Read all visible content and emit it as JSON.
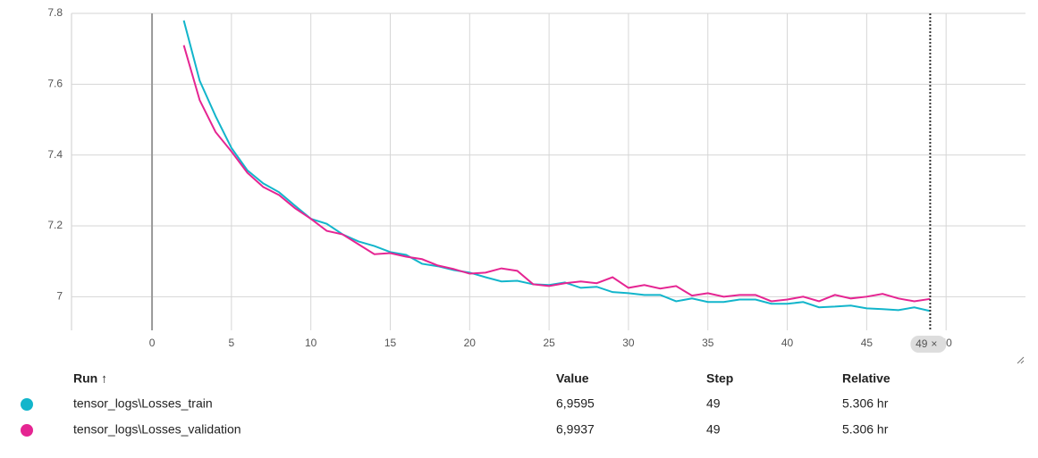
{
  "chart_data": {
    "type": "line",
    "x": [
      2,
      3,
      4,
      5,
      6,
      7,
      8,
      9,
      10,
      11,
      12,
      13,
      14,
      15,
      16,
      17,
      18,
      19,
      20,
      21,
      22,
      23,
      24,
      25,
      26,
      27,
      28,
      29,
      30,
      31,
      32,
      33,
      34,
      35,
      36,
      37,
      38,
      39,
      40,
      41,
      42,
      43,
      44,
      45,
      46,
      47,
      48,
      49
    ],
    "series": [
      {
        "name": "tensor_logs\\Losses_train",
        "color": "#12b5cb",
        "values": [
          7.78,
          7.61,
          7.51,
          7.42,
          7.357,
          7.32,
          7.295,
          7.257,
          7.22,
          7.206,
          7.176,
          7.156,
          7.143,
          7.126,
          7.118,
          7.093,
          7.086,
          7.075,
          7.068,
          7.055,
          7.043,
          7.045,
          7.035,
          7.033,
          7.04,
          7.025,
          7.028,
          7.013,
          7.01,
          7.005,
          7.005,
          6.987,
          6.995,
          6.985,
          6.985,
          6.992,
          6.992,
          6.98,
          6.98,
          6.985,
          6.97,
          6.972,
          6.975,
          6.967,
          6.965,
          6.962,
          6.97,
          6.9595
        ]
      },
      {
        "name": "tensor_logs\\Losses_validation",
        "color": "#e52592",
        "values": [
          7.71,
          7.555,
          7.465,
          7.41,
          7.35,
          7.31,
          7.287,
          7.25,
          7.22,
          7.186,
          7.176,
          7.148,
          7.12,
          7.123,
          7.113,
          7.106,
          7.088,
          7.078,
          7.065,
          7.068,
          7.08,
          7.073,
          7.035,
          7.03,
          7.038,
          7.043,
          7.038,
          7.055,
          7.025,
          7.033,
          7.023,
          7.03,
          7.003,
          7.01,
          7.0,
          7.005,
          7.005,
          6.987,
          6.992,
          7.0,
          6.987,
          7.005,
          6.995,
          7.0,
          7.008,
          6.995,
          6.987,
          6.9937
        ]
      }
    ],
    "xlim": [
      -5.07,
      55
    ],
    "xticks": [
      0,
      5,
      10,
      15,
      20,
      25,
      30,
      35,
      40,
      45,
      50
    ],
    "ylim": [
      6.905,
      7.8
    ],
    "yticks": [
      7,
      7.2,
      7.4,
      7.6,
      7.8
    ],
    "grid": true,
    "cursor_step": 49,
    "cursor_close": "×"
  },
  "table": {
    "columns": [
      "Run ↑",
      "Value",
      "Step",
      "Relative"
    ],
    "rows": [
      [
        "6,9595",
        "49",
        "5.306 hr"
      ],
      [
        "6,9937",
        "49",
        "5.306 hr"
      ]
    ]
  }
}
